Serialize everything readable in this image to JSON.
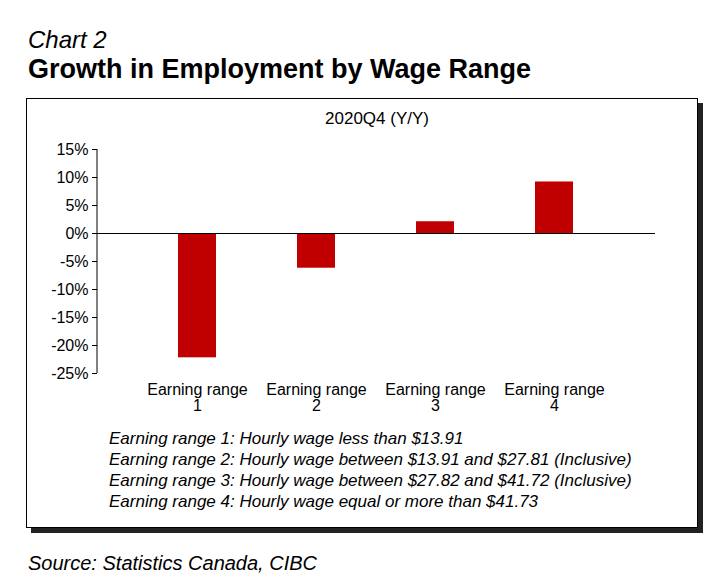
{
  "chart_data": {
    "type": "bar",
    "chart_number": "Chart 2",
    "title": "Growth in Employment by Wage Range",
    "subtitle": "2020Q4 (Y/Y)",
    "categories": [
      "Earning range 1",
      "Earning range 2",
      "Earning range 3",
      "Earning range 4"
    ],
    "values": [
      -22.2,
      -6.2,
      2.1,
      9.2
    ],
    "color": "#c00000",
    "ylim": [
      -25,
      15
    ],
    "yticks": [
      {
        "value": -25,
        "label": "-25%"
      },
      {
        "value": -20,
        "label": "-20%"
      },
      {
        "value": -15,
        "label": "-15%"
      },
      {
        "value": -10,
        "label": "-10%"
      },
      {
        "value": -5,
        "label": "-5%"
      },
      {
        "value": 0,
        "label": "0%"
      },
      {
        "value": 5,
        "label": "5%"
      },
      {
        "value": 10,
        "label": "10%"
      },
      {
        "value": 15,
        "label": "15%"
      }
    ],
    "grid": false,
    "data_labels": false,
    "notes": [
      "Earning range 1: Hourly wage less than $13.91",
      "Earning range 2: Hourly wage between $13.91 and $27.81 (Inclusive)",
      "Earning range 3: Hourly wage between $27.82 and $41.72 (Inclusive)",
      "Earning range 4: Hourly wage equal or more than $41.73"
    ],
    "source": "Source: Statistics Canada, CIBC"
  }
}
